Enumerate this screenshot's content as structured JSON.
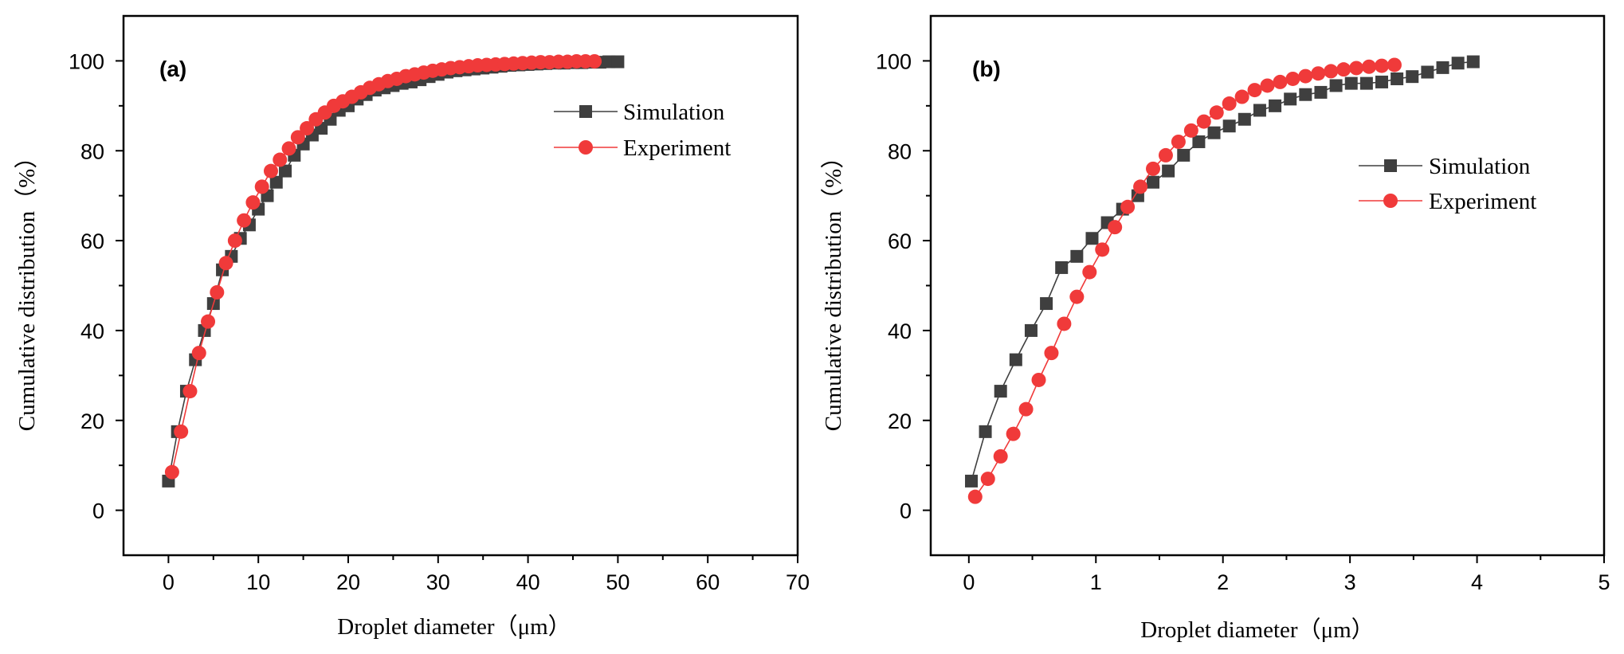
{
  "colors": {
    "simulation": "#3f3f3f",
    "experiment": "#f03a3a",
    "axis": "#000000"
  },
  "chart_data": [
    {
      "type": "scatter",
      "panel_label": "(a)",
      "xlabel": "Droplet diameter（μm）",
      "ylabel": "Cumulative distribution（%）",
      "xlim": [
        -5,
        70
      ],
      "ylim": [
        -10,
        110
      ],
      "xticks": [
        "0",
        "10",
        "20",
        "30",
        "40",
        "50",
        "60",
        "70"
      ],
      "yticks": [
        "0",
        "20",
        "40",
        "60",
        "80",
        "100"
      ],
      "legend_position": "top-right",
      "series": [
        {
          "name": "Simulation",
          "marker": "square",
          "x": [
            0,
            1,
            2,
            3,
            4,
            5,
            6,
            7,
            8,
            9,
            10,
            11,
            12,
            13,
            14,
            15,
            16,
            17,
            18,
            19,
            20,
            21,
            22,
            23,
            24,
            25,
            26,
            27,
            28,
            29,
            30,
            31,
            32,
            33,
            34,
            35,
            36,
            37,
            38,
            39,
            40,
            41,
            42,
            43,
            44,
            45,
            46,
            47,
            48,
            49,
            50
          ],
          "y": [
            6.5,
            17.5,
            26.5,
            33.5,
            40,
            46,
            53.5,
            56.5,
            60.5,
            63.5,
            67,
            70,
            73,
            75.5,
            79,
            81.5,
            83.5,
            85,
            87,
            89,
            90,
            91.5,
            92.5,
            93.5,
            94,
            94.5,
            95,
            95.3,
            95.8,
            96.5,
            97,
            97.5,
            97.8,
            98,
            98.2,
            98.4,
            98.6,
            98.8,
            99,
            99.1,
            99.2,
            99.3,
            99.4,
            99.5,
            99.5,
            99.6,
            99.6,
            99.7,
            99.7,
            99.8,
            99.8
          ]
        },
        {
          "name": "Experiment",
          "marker": "circle",
          "x": [
            0.4,
            1.4,
            2.4,
            3.4,
            4.4,
            5.4,
            6.4,
            7.4,
            8.4,
            9.4,
            10.4,
            11.4,
            12.4,
            13.4,
            14.4,
            15.4,
            16.4,
            17.4,
            18.4,
            19.4,
            20.4,
            21.4,
            22.4,
            23.4,
            24.4,
            25.4,
            26.4,
            27.4,
            28.4,
            29.4,
            30.4,
            31.4,
            32.4,
            33.4,
            34.4,
            35.4,
            36.4,
            37.4,
            38.4,
            39.4,
            40.4,
            41.4,
            42.4,
            43.4,
            44.4,
            45.4,
            46.4,
            47.4
          ],
          "y": [
            8.5,
            17.5,
            26.5,
            35,
            42,
            48.5,
            55,
            60,
            64.5,
            68.5,
            72,
            75.5,
            78,
            80.5,
            83,
            85,
            87,
            88.5,
            90,
            91,
            92,
            93,
            94,
            94.8,
            95.5,
            96,
            96.6,
            97,
            97.4,
            97.8,
            98.1,
            98.4,
            98.6,
            98.8,
            99,
            99.1,
            99.2,
            99.3,
            99.4,
            99.5,
            99.6,
            99.7,
            99.7,
            99.8,
            99.8,
            99.9,
            99.9,
            99.9
          ]
        }
      ]
    },
    {
      "type": "scatter",
      "panel_label": "(b)",
      "xlabel": "Droplet diameter（μm）",
      "ylabel": "Cumulative distribution（%）",
      "xlim": [
        -0.3,
        5
      ],
      "ylim": [
        -10,
        110
      ],
      "xticks": [
        "0",
        "1",
        "2",
        "3",
        "4",
        "5"
      ],
      "yticks": [
        "0",
        "20",
        "40",
        "60",
        "80",
        "100"
      ],
      "legend_position": "right",
      "series": [
        {
          "name": "Simulation",
          "marker": "square",
          "x": [
            0.02,
            0.13,
            0.25,
            0.37,
            0.49,
            0.61,
            0.73,
            0.85,
            0.97,
            1.09,
            1.21,
            1.33,
            1.45,
            1.57,
            1.69,
            1.81,
            1.93,
            2.05,
            2.17,
            2.29,
            2.41,
            2.53,
            2.65,
            2.77,
            2.89,
            3.01,
            3.13,
            3.25,
            3.37,
            3.49,
            3.61,
            3.73,
            3.85,
            3.97
          ],
          "y": [
            6.5,
            17.5,
            26.5,
            33.5,
            40,
            46,
            54,
            56.5,
            60.5,
            64,
            67,
            70,
            73,
            75.5,
            79,
            82,
            84,
            85.5,
            87,
            89,
            90,
            91.5,
            92.5,
            93,
            94.5,
            95,
            95,
            95.3,
            96,
            96.5,
            97.5,
            98.5,
            99.5,
            99.8
          ]
        },
        {
          "name": "Experiment",
          "marker": "circle",
          "x": [
            0.05,
            0.15,
            0.25,
            0.35,
            0.45,
            0.55,
            0.65,
            0.75,
            0.85,
            0.95,
            1.05,
            1.15,
            1.25,
            1.35,
            1.45,
            1.55,
            1.65,
            1.75,
            1.85,
            1.95,
            2.05,
            2.15,
            2.25,
            2.35,
            2.45,
            2.55,
            2.65,
            2.75,
            2.85,
            2.95,
            3.05,
            3.15,
            3.25,
            3.35
          ],
          "y": [
            3,
            7,
            12,
            17,
            22.5,
            29,
            35,
            41.5,
            47.5,
            53,
            58,
            63,
            67.5,
            72,
            76,
            79,
            82,
            84.5,
            86.5,
            88.5,
            90.5,
            92,
            93.5,
            94.5,
            95.3,
            96,
            96.6,
            97.2,
            97.7,
            98.1,
            98.4,
            98.7,
            98.9,
            99.1
          ]
        }
      ]
    }
  ]
}
